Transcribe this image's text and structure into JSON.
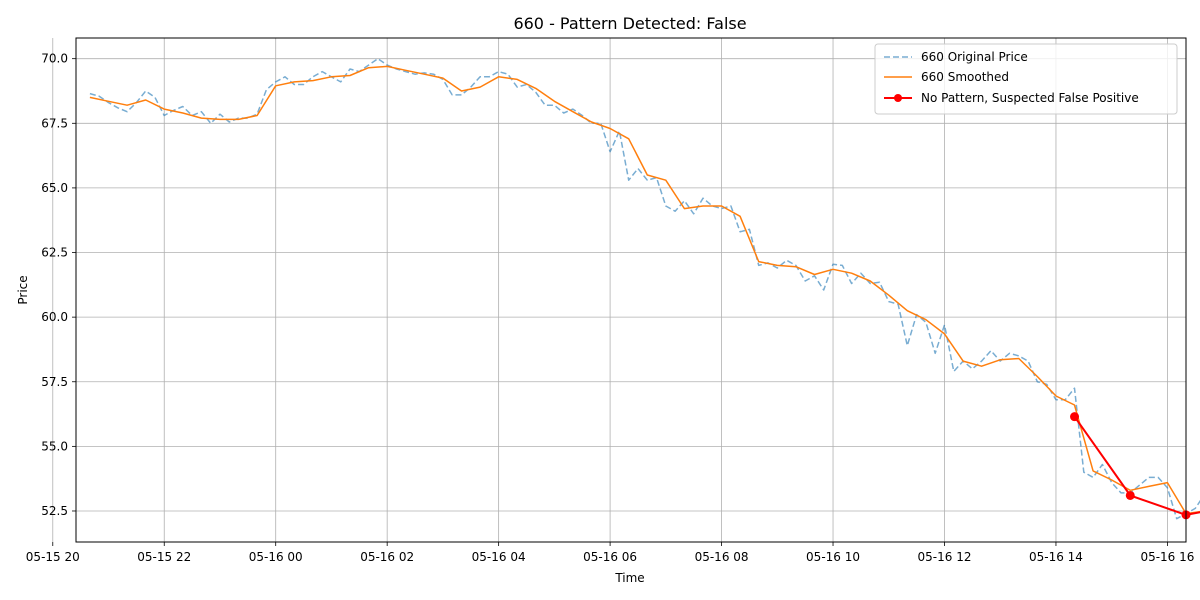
{
  "chart_data": {
    "type": "line",
    "title": "660 - Pattern Detected: False",
    "xlabel": "Time",
    "ylabel": "Price",
    "xlim": [
      "2026-05-15 20:25",
      "2026-05-16 16:20"
    ],
    "ylim": [
      51.3,
      70.8
    ],
    "x_ticks": [
      "05-15 20",
      "05-15 22",
      "05-16 00",
      "05-16 02",
      "05-16 04",
      "05-16 06",
      "05-16 08",
      "05-16 10",
      "05-16 12",
      "05-16 14",
      "05-16 16"
    ],
    "x_tick_times": [
      "2026-05-15 20:00",
      "2026-05-15 22:00",
      "2026-05-16 00:00",
      "2026-05-16 02:00",
      "2026-05-16 04:00",
      "2026-05-16 06:00",
      "2026-05-16 08:00",
      "2026-05-16 10:00",
      "2026-05-16 12:00",
      "2026-05-16 14:00",
      "2026-05-16 16:00"
    ],
    "y_ticks": [
      "52.5",
      "55.0",
      "57.5",
      "60.0",
      "62.5",
      "65.0",
      "67.5",
      "70.0"
    ],
    "y_tick_values": [
      52.5,
      55.0,
      57.5,
      60.0,
      62.5,
      65.0,
      67.5,
      70.0
    ],
    "grid": true,
    "legend_position": "top-right",
    "series": [
      {
        "name": "660 Original Price",
        "style": "dashed",
        "color": "#1f77b4",
        "points": [
          [
            "2026-05-15 20:40",
            68.65
          ],
          [
            "2026-05-15 20:50",
            68.55
          ],
          [
            "2026-05-15 21:00",
            68.3
          ],
          [
            "2026-05-15 21:10",
            68.1
          ],
          [
            "2026-05-15 21:20",
            67.95
          ],
          [
            "2026-05-15 21:30",
            68.3
          ],
          [
            "2026-05-15 21:40",
            68.75
          ],
          [
            "2026-05-15 21:50",
            68.5
          ],
          [
            "2026-05-15 22:00",
            67.8
          ],
          [
            "2026-05-15 22:10",
            68.0
          ],
          [
            "2026-05-15 22:20",
            68.15
          ],
          [
            "2026-05-15 22:30",
            67.8
          ],
          [
            "2026-05-15 22:40",
            67.95
          ],
          [
            "2026-05-15 22:50",
            67.5
          ],
          [
            "2026-05-15 23:00",
            67.85
          ],
          [
            "2026-05-15 23:10",
            67.55
          ],
          [
            "2026-05-15 23:20",
            67.7
          ],
          [
            "2026-05-15 23:30",
            67.7
          ],
          [
            "2026-05-15 23:40",
            67.85
          ],
          [
            "2026-05-15 23:50",
            68.8
          ],
          [
            "2026-05-16 00:00",
            69.1
          ],
          [
            "2026-05-16 00:10",
            69.3
          ],
          [
            "2026-05-16 00:20",
            69.0
          ],
          [
            "2026-05-16 00:30",
            69.0
          ],
          [
            "2026-05-16 00:40",
            69.3
          ],
          [
            "2026-05-16 00:50",
            69.5
          ],
          [
            "2026-05-16 01:00",
            69.3
          ],
          [
            "2026-05-16 01:10",
            69.1
          ],
          [
            "2026-05-16 01:20",
            69.6
          ],
          [
            "2026-05-16 01:30",
            69.5
          ],
          [
            "2026-05-16 01:40",
            69.75
          ],
          [
            "2026-05-16 01:50",
            70.0
          ],
          [
            "2026-05-16 02:00",
            69.75
          ],
          [
            "2026-05-16 02:10",
            69.6
          ],
          [
            "2026-05-16 02:20",
            69.5
          ],
          [
            "2026-05-16 02:30",
            69.4
          ],
          [
            "2026-05-16 02:40",
            69.45
          ],
          [
            "2026-05-16 02:50",
            69.4
          ],
          [
            "2026-05-16 03:00",
            69.2
          ],
          [
            "2026-05-16 03:10",
            68.6
          ],
          [
            "2026-05-16 03:20",
            68.6
          ],
          [
            "2026-05-16 03:30",
            68.9
          ],
          [
            "2026-05-16 03:40",
            69.3
          ],
          [
            "2026-05-16 03:50",
            69.3
          ],
          [
            "2026-05-16 04:00",
            69.5
          ],
          [
            "2026-05-16 04:10",
            69.4
          ],
          [
            "2026-05-16 04:20",
            68.9
          ],
          [
            "2026-05-16 04:30",
            69.0
          ],
          [
            "2026-05-16 04:40",
            68.7
          ],
          [
            "2026-05-16 04:50",
            68.2
          ],
          [
            "2026-05-16 05:00",
            68.2
          ],
          [
            "2026-05-16 05:10",
            67.9
          ],
          [
            "2026-05-16 05:20",
            68.05
          ],
          [
            "2026-05-16 05:30",
            67.8
          ],
          [
            "2026-05-16 05:40",
            67.5
          ],
          [
            "2026-05-16 05:50",
            67.5
          ],
          [
            "2026-05-16 06:00",
            66.4
          ],
          [
            "2026-05-16 06:10",
            67.2
          ],
          [
            "2026-05-16 06:20",
            65.3
          ],
          [
            "2026-05-16 06:30",
            65.75
          ],
          [
            "2026-05-16 06:40",
            65.3
          ],
          [
            "2026-05-16 06:50",
            65.4
          ],
          [
            "2026-05-16 07:00",
            64.3
          ],
          [
            "2026-05-16 07:10",
            64.1
          ],
          [
            "2026-05-16 07:20",
            64.5
          ],
          [
            "2026-05-16 07:30",
            64.0
          ],
          [
            "2026-05-16 07:40",
            64.6
          ],
          [
            "2026-05-16 07:50",
            64.3
          ],
          [
            "2026-05-16 08:00",
            64.2
          ],
          [
            "2026-05-16 08:10",
            64.3
          ],
          [
            "2026-05-16 08:20",
            63.3
          ],
          [
            "2026-05-16 08:30",
            63.4
          ],
          [
            "2026-05-16 08:40",
            62.0
          ],
          [
            "2026-05-16 08:50",
            62.1
          ],
          [
            "2026-05-16 09:00",
            61.9
          ],
          [
            "2026-05-16 09:10",
            62.2
          ],
          [
            "2026-05-16 09:20",
            62.0
          ],
          [
            "2026-05-16 09:30",
            61.4
          ],
          [
            "2026-05-16 09:40",
            61.6
          ],
          [
            "2026-05-16 09:50",
            61.05
          ],
          [
            "2026-05-16 10:00",
            62.05
          ],
          [
            "2026-05-16 10:10",
            62.0
          ],
          [
            "2026-05-16 10:20",
            61.3
          ],
          [
            "2026-05-16 10:30",
            61.7
          ],
          [
            "2026-05-16 10:40",
            61.3
          ],
          [
            "2026-05-16 10:50",
            61.35
          ],
          [
            "2026-05-16 11:00",
            60.6
          ],
          [
            "2026-05-16 11:10",
            60.5
          ],
          [
            "2026-05-16 11:20",
            58.9
          ],
          [
            "2026-05-16 11:30",
            60.1
          ],
          [
            "2026-05-16 11:40",
            59.8
          ],
          [
            "2026-05-16 11:50",
            58.6
          ],
          [
            "2026-05-16 12:00",
            59.7
          ],
          [
            "2026-05-16 12:10",
            57.9
          ],
          [
            "2026-05-16 12:20",
            58.3
          ],
          [
            "2026-05-16 12:30",
            58.0
          ],
          [
            "2026-05-16 12:40",
            58.3
          ],
          [
            "2026-05-16 12:50",
            58.7
          ],
          [
            "2026-05-16 13:00",
            58.3
          ],
          [
            "2026-05-16 13:10",
            58.6
          ],
          [
            "2026-05-16 13:20",
            58.5
          ],
          [
            "2026-05-16 13:30",
            58.3
          ],
          [
            "2026-05-16 13:40",
            57.5
          ],
          [
            "2026-05-16 13:50",
            57.4
          ],
          [
            "2026-05-16 14:00",
            56.8
          ],
          [
            "2026-05-16 14:10",
            56.8
          ],
          [
            "2026-05-16 14:20",
            57.25
          ],
          [
            "2026-05-16 14:30",
            54.0
          ],
          [
            "2026-05-16 14:40",
            53.8
          ],
          [
            "2026-05-16 14:50",
            54.3
          ],
          [
            "2026-05-16 15:00",
            53.6
          ],
          [
            "2026-05-16 15:10",
            53.2
          ],
          [
            "2026-05-16 15:20",
            53.2
          ],
          [
            "2026-05-16 15:30",
            53.5
          ],
          [
            "2026-05-16 15:40",
            53.8
          ],
          [
            "2026-05-16 15:50",
            53.8
          ],
          [
            "2026-05-16 16:00",
            53.4
          ],
          [
            "2026-05-16 16:10",
            52.2
          ],
          [
            "2026-05-16 16:20",
            52.4
          ],
          [
            "2026-05-16 16:30",
            52.6
          ],
          [
            "2026-05-16 16:40",
            53.15
          ],
          [
            "2026-05-16 16:50",
            52.6
          ]
        ]
      },
      {
        "name": "660 Smoothed",
        "style": "solid",
        "color": "#ff7f0e",
        "points": [
          [
            "2026-05-15 20:40",
            68.5
          ],
          [
            "2026-05-15 21:00",
            68.35
          ],
          [
            "2026-05-15 21:20",
            68.2
          ],
          [
            "2026-05-15 21:40",
            68.4
          ],
          [
            "2026-05-15 22:00",
            68.05
          ],
          [
            "2026-05-15 22:20",
            67.9
          ],
          [
            "2026-05-15 22:40",
            67.7
          ],
          [
            "2026-05-15 23:00",
            67.65
          ],
          [
            "2026-05-15 23:20",
            67.65
          ],
          [
            "2026-05-15 23:40",
            67.8
          ],
          [
            "2026-05-16 00:00",
            68.95
          ],
          [
            "2026-05-16 00:20",
            69.1
          ],
          [
            "2026-05-16 00:40",
            69.15
          ],
          [
            "2026-05-16 01:00",
            69.3
          ],
          [
            "2026-05-16 01:20",
            69.35
          ],
          [
            "2026-05-16 01:40",
            69.65
          ],
          [
            "2026-05-16 02:00",
            69.7
          ],
          [
            "2026-05-16 02:20",
            69.55
          ],
          [
            "2026-05-16 02:40",
            69.4
          ],
          [
            "2026-05-16 03:00",
            69.25
          ],
          [
            "2026-05-16 03:20",
            68.75
          ],
          [
            "2026-05-16 03:40",
            68.9
          ],
          [
            "2026-05-16 04:00",
            69.3
          ],
          [
            "2026-05-16 04:20",
            69.2
          ],
          [
            "2026-05-16 04:40",
            68.85
          ],
          [
            "2026-05-16 05:00",
            68.35
          ],
          [
            "2026-05-16 05:20",
            67.95
          ],
          [
            "2026-05-16 05:40",
            67.55
          ],
          [
            "2026-05-16 06:00",
            67.3
          ],
          [
            "2026-05-16 06:20",
            66.9
          ],
          [
            "2026-05-16 06:40",
            65.5
          ],
          [
            "2026-05-16 07:00",
            65.3
          ],
          [
            "2026-05-16 07:20",
            64.2
          ],
          [
            "2026-05-16 07:40",
            64.3
          ],
          [
            "2026-05-16 08:00",
            64.3
          ],
          [
            "2026-05-16 08:20",
            63.9
          ],
          [
            "2026-05-16 08:40",
            62.15
          ],
          [
            "2026-05-16 09:00",
            62.0
          ],
          [
            "2026-05-16 09:20",
            61.95
          ],
          [
            "2026-05-16 09:40",
            61.65
          ],
          [
            "2026-05-16 10:00",
            61.85
          ],
          [
            "2026-05-16 10:20",
            61.7
          ],
          [
            "2026-05-16 10:40",
            61.4
          ],
          [
            "2026-05-16 11:00",
            60.85
          ],
          [
            "2026-05-16 11:20",
            60.25
          ],
          [
            "2026-05-16 11:40",
            59.9
          ],
          [
            "2026-05-16 12:00",
            59.35
          ],
          [
            "2026-05-16 12:20",
            58.3
          ],
          [
            "2026-05-16 12:40",
            58.1
          ],
          [
            "2026-05-16 13:00",
            58.35
          ],
          [
            "2026-05-16 13:20",
            58.4
          ],
          [
            "2026-05-16 13:40",
            57.7
          ],
          [
            "2026-05-16 14:00",
            56.95
          ],
          [
            "2026-05-16 14:20",
            56.6
          ],
          [
            "2026-05-16 14:40",
            54.05
          ],
          [
            "2026-05-16 15:00",
            53.7
          ],
          [
            "2026-05-16 15:20",
            53.3
          ],
          [
            "2026-05-16 15:40",
            53.45
          ],
          [
            "2026-05-16 16:00",
            53.6
          ],
          [
            "2026-05-16 16:20",
            52.4
          ],
          [
            "2026-05-16 16:40",
            52.5
          ],
          [
            "2026-05-16 16:50",
            52.55
          ]
        ]
      },
      {
        "name": "No Pattern, Suspected False Positive",
        "style": "solid-markers",
        "color": "#ff0000",
        "points": [
          [
            "2026-05-16 14:20",
            56.15
          ],
          [
            "2026-05-16 15:20",
            53.1
          ],
          [
            "2026-05-16 16:20",
            52.35
          ],
          [
            "2026-05-16 16:50",
            52.55
          ]
        ]
      }
    ]
  }
}
